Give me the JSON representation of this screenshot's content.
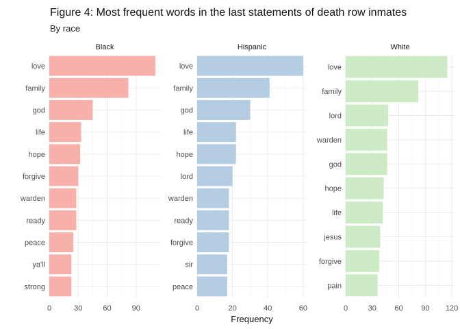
{
  "title": "Figure 4: Most frequent words in the last statements of death row inmates",
  "subtitle": "By race",
  "chart_data": {
    "type": "bar",
    "orientation": "horizontal",
    "xlabel": "Frequency",
    "panels": [
      {
        "name": "Black",
        "color": "#F8B1AA",
        "categories": [
          "love",
          "family",
          "god",
          "life",
          "hope",
          "forgive",
          "warden",
          "ready",
          "peace",
          "ya'll",
          "strong"
        ],
        "values": [
          110,
          82,
          45,
          33,
          32,
          30,
          28,
          28,
          25,
          23,
          23
        ],
        "xlim": [
          0,
          115
        ],
        "ticks": [
          0,
          30,
          60,
          90
        ],
        "tick_labels": [
          "0",
          "30",
          "60",
          "90"
        ]
      },
      {
        "name": "Hispanic",
        "color": "#B4CDE3",
        "categories": [
          "love",
          "family",
          "god",
          "life",
          "hope",
          "lord",
          "warden",
          "ready",
          "forgive",
          "sir",
          "peace"
        ],
        "values": [
          60,
          41,
          30,
          22,
          22,
          20,
          18,
          18,
          18,
          17,
          17
        ],
        "xlim": [
          0,
          62
        ],
        "ticks": [
          0,
          20,
          40,
          60
        ],
        "tick_labels": [
          "0",
          "20",
          "40",
          "60"
        ]
      },
      {
        "name": "White",
        "color": "#CCEBC5",
        "categories": [
          "love",
          "family",
          "lord",
          "warden",
          "god",
          "hope",
          "life",
          "jesus",
          "forgive",
          "pain"
        ],
        "values": [
          115,
          82,
          48,
          47,
          47,
          43,
          42,
          39,
          38,
          36
        ],
        "xlim": [
          0,
          123
        ],
        "ticks": [
          0,
          30,
          60,
          90,
          120
        ],
        "tick_labels": [
          "0",
          "30",
          "60",
          "90",
          "120"
        ]
      }
    ]
  }
}
